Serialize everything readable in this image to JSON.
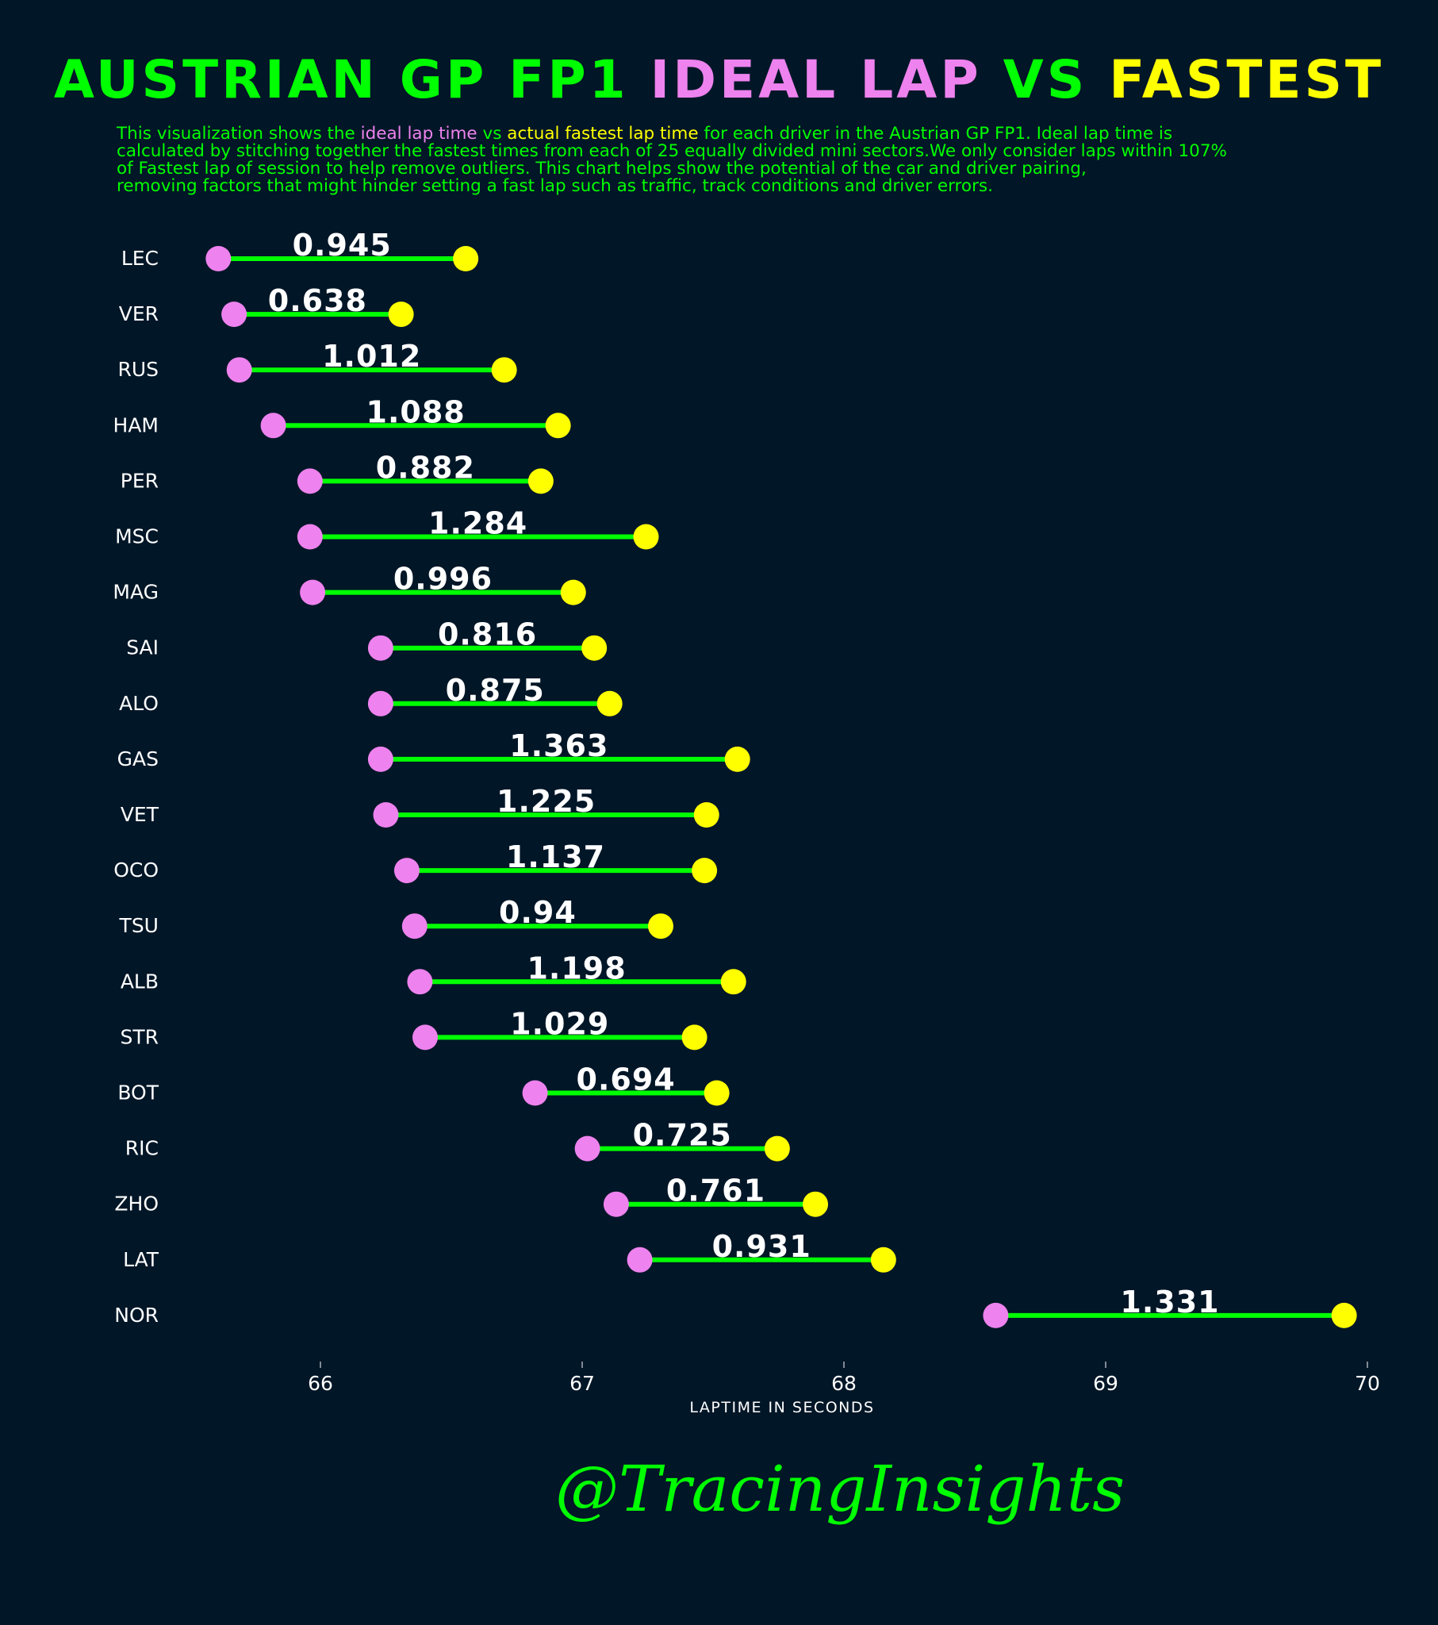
{
  "title": {
    "part1": "AUSTRIAN GP FP1 ",
    "part2": "IDEAL LAP",
    "part3": " VS ",
    "part4": "FASTEST"
  },
  "description": {
    "line1_a": "This visualization shows the ",
    "line1_ideal": "ideal lap time",
    "line1_vs": " vs ",
    "line1_fastest": "actual fastest lap time",
    "line1_b": " for each driver in the Austrian GP FP1. Ideal lap time is",
    "line2": "calculated by stitching together the fastest times from each of 25 equally divided mini sectors.We only consider laps within 107%",
    "line3": "of Fastest lap of session to help remove outliers. This chart helps show the potential of the car and driver pairing,",
    "line4": "removing factors that might hinder setting a fast lap such as traffic, track conditions and driver errors."
  },
  "watermark": "@TracingInsights",
  "colors": {
    "background": "#011627",
    "green": "#00ff00",
    "ideal": "#ee82ee",
    "fastest": "#ffff00",
    "text": "#ffffff"
  },
  "chart_data": {
    "type": "dumbbell",
    "xlabel": "LAPTIME IN SECONDS",
    "xlim": [
      65.6,
      70.0
    ],
    "xticks": [
      66,
      67,
      68,
      69,
      70
    ],
    "series": [
      {
        "name": "ideal lap time",
        "color": "#ee82ee"
      },
      {
        "name": "actual fastest lap time",
        "color": "#ffff00"
      }
    ],
    "drivers": [
      {
        "driver": "LEC",
        "ideal": 65.61,
        "fastest": 66.555,
        "delta": "0.945"
      },
      {
        "driver": "VER",
        "ideal": 65.67,
        "fastest": 66.308,
        "delta": "0.638"
      },
      {
        "driver": "RUS",
        "ideal": 65.69,
        "fastest": 66.702,
        "delta": "1.012"
      },
      {
        "driver": "HAM",
        "ideal": 65.82,
        "fastest": 66.908,
        "delta": "1.088"
      },
      {
        "driver": "PER",
        "ideal": 65.96,
        "fastest": 66.842,
        "delta": "0.882"
      },
      {
        "driver": "MSC",
        "ideal": 65.96,
        "fastest": 67.244,
        "delta": "1.284"
      },
      {
        "driver": "MAG",
        "ideal": 65.97,
        "fastest": 66.966,
        "delta": "0.996"
      },
      {
        "driver": "SAI",
        "ideal": 66.23,
        "fastest": 67.046,
        "delta": "0.816"
      },
      {
        "driver": "ALO",
        "ideal": 66.23,
        "fastest": 67.105,
        "delta": "0.875"
      },
      {
        "driver": "GAS",
        "ideal": 66.23,
        "fastest": 67.593,
        "delta": "1.363"
      },
      {
        "driver": "VET",
        "ideal": 66.25,
        "fastest": 67.475,
        "delta": "1.225"
      },
      {
        "driver": "OCO",
        "ideal": 66.33,
        "fastest": 67.467,
        "delta": "1.137"
      },
      {
        "driver": "TSU",
        "ideal": 66.36,
        "fastest": 67.3,
        "delta": "0.94"
      },
      {
        "driver": "ALB",
        "ideal": 66.38,
        "fastest": 67.578,
        "delta": "1.198"
      },
      {
        "driver": "STR",
        "ideal": 66.4,
        "fastest": 67.429,
        "delta": "1.029"
      },
      {
        "driver": "BOT",
        "ideal": 66.82,
        "fastest": 67.514,
        "delta": "0.694"
      },
      {
        "driver": "RIC",
        "ideal": 67.02,
        "fastest": 67.745,
        "delta": "0.725"
      },
      {
        "driver": "ZHO",
        "ideal": 67.13,
        "fastest": 67.891,
        "delta": "0.761"
      },
      {
        "driver": "LAT",
        "ideal": 67.22,
        "fastest": 68.151,
        "delta": "0.931"
      },
      {
        "driver": "NOR",
        "ideal": 68.58,
        "fastest": 69.911,
        "delta": "1.331"
      }
    ]
  }
}
